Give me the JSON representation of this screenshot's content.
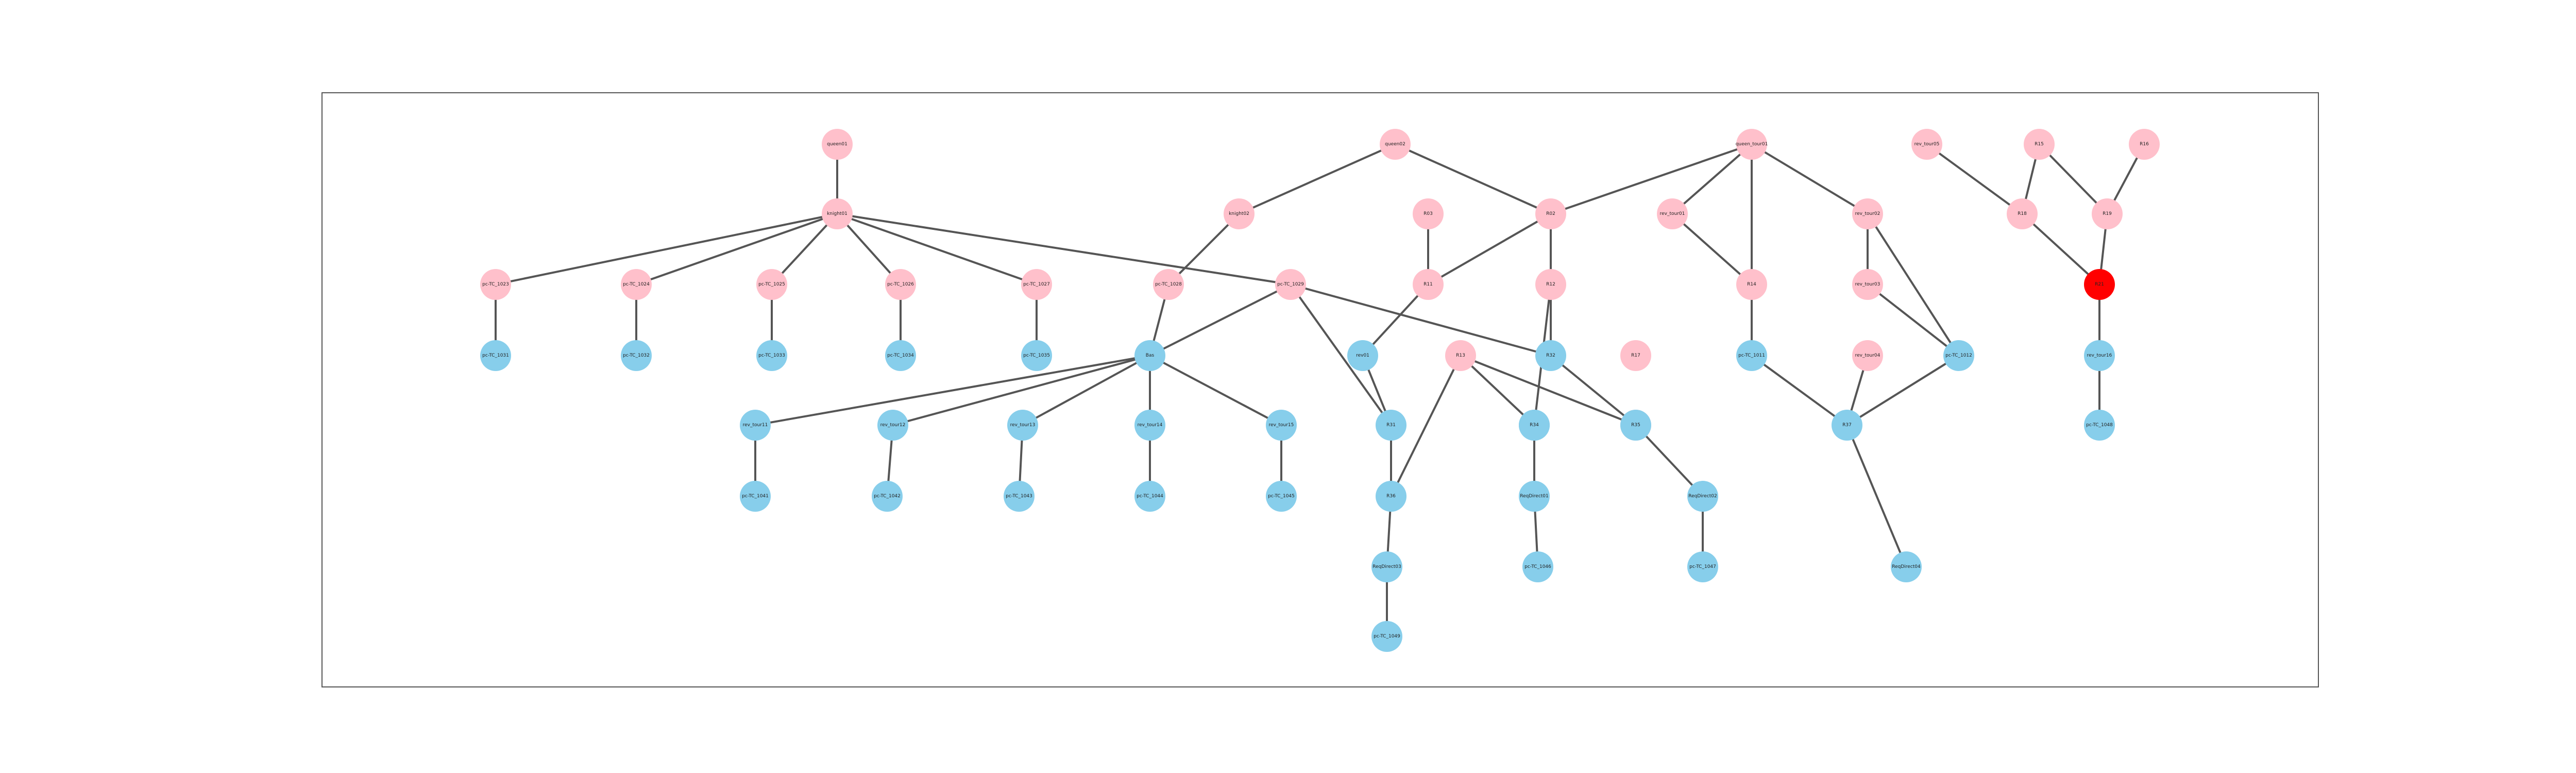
{
  "colors": {
    "pink_node": "#ffc0cb",
    "blue_node": "#87ceeb",
    "highlight_node": "#ff0000",
    "edge": "#555555"
  },
  "nodes": [
    {
      "id": "n1",
      "label": "queen01",
      "color": "pink"
    },
    {
      "id": "n2",
      "label": "knight01",
      "color": "pink"
    },
    {
      "id": "n3",
      "label": "queen02",
      "color": "pink"
    },
    {
      "id": "n4",
      "label": "knight02",
      "color": "pink"
    },
    {
      "id": "n5",
      "label": "R02",
      "color": "pink"
    },
    {
      "id": "n6",
      "label": "R03",
      "color": "pink"
    },
    {
      "id": "n7",
      "label": "queen_tour01",
      "color": "pink"
    },
    {
      "id": "n8",
      "label": "rev_tour01",
      "color": "pink"
    },
    {
      "id": "n9",
      "label": "rev_tour02",
      "color": "pink"
    },
    {
      "id": "n10",
      "label": "pc-TC_1023",
      "color": "pink"
    },
    {
      "id": "n11",
      "label": "pc-TC_1024",
      "color": "pink"
    },
    {
      "id": "n12",
      "label": "pc-TC_1025",
      "color": "pink"
    },
    {
      "id": "n13",
      "label": "pc-TC_1026",
      "color": "pink"
    },
    {
      "id": "n14",
      "label": "pc-TC_1027",
      "color": "pink"
    },
    {
      "id": "n15",
      "label": "pc-TC_1028",
      "color": "pink"
    },
    {
      "id": "n16",
      "label": "pc-TC_1029",
      "color": "pink"
    },
    {
      "id": "n17",
      "label": "R11",
      "color": "pink"
    },
    {
      "id": "n18",
      "label": "R12",
      "color": "pink"
    },
    {
      "id": "n19",
      "label": "R13",
      "color": "pink"
    },
    {
      "id": "n20",
      "label": "rev_tour03",
      "color": "pink"
    },
    {
      "id": "n21",
      "label": "R14",
      "color": "pink"
    },
    {
      "id": "n22",
      "label": "rev_tour04",
      "color": "pink"
    },
    {
      "id": "n23",
      "label": "rev_tour05",
      "color": "pink"
    },
    {
      "id": "n24",
      "label": "R15",
      "color": "pink"
    },
    {
      "id": "n25",
      "label": "R16",
      "color": "pink"
    },
    {
      "id": "n26",
      "label": "R17",
      "color": "pink"
    },
    {
      "id": "n27",
      "label": "R18",
      "color": "pink"
    },
    {
      "id": "n28",
      "label": "R19",
      "color": "pink"
    },
    {
      "id": "n29",
      "label": "R20",
      "color": "pink"
    },
    {
      "id": "n30",
      "label": "R21",
      "color": "highlight"
    },
    {
      "id": "n31",
      "label": "pc-TC_1031",
      "color": "blue"
    },
    {
      "id": "n32",
      "label": "pc-TC_1032",
      "color": "blue"
    },
    {
      "id": "n33",
      "label": "pc-TC_1033",
      "color": "blue"
    },
    {
      "id": "n34",
      "label": "pc-TC_1034",
      "color": "blue"
    },
    {
      "id": "n35",
      "label": "pc-TC_1035",
      "color": "blue"
    },
    {
      "id": "n36",
      "label": "Bas",
      "color": "blue"
    },
    {
      "id": "n37",
      "label": "rev01",
      "color": "blue"
    },
    {
      "id": "n38",
      "label": "R31",
      "color": "blue"
    },
    {
      "id": "n39",
      "label": "pc-TC_1011",
      "color": "blue"
    },
    {
      "id": "n40",
      "label": "R32",
      "color": "blue"
    },
    {
      "id": "n41",
      "label": "rev_tour11",
      "color": "blue"
    },
    {
      "id": "n42",
      "label": "rev_tour12",
      "color": "blue"
    },
    {
      "id": "n43",
      "label": "rev_tour13",
      "color": "blue"
    },
    {
      "id": "n44",
      "label": "rev_tour14",
      "color": "blue"
    },
    {
      "id": "n45",
      "label": "rev_tour15",
      "color": "blue"
    },
    {
      "id": "n46",
      "label": "R33",
      "color": "blue"
    },
    {
      "id": "n47",
      "label": "R34",
      "color": "blue"
    },
    {
      "id": "n48",
      "label": "R35",
      "color": "blue"
    },
    {
      "id": "n49",
      "label": "pc-TC_1012",
      "color": "blue"
    },
    {
      "id": "n50",
      "label": "pc-TC_1041",
      "color": "blue"
    },
    {
      "id": "n51",
      "label": "pc-TC_1042",
      "color": "blue"
    },
    {
      "id": "n52",
      "label": "pc-TC_1043",
      "color": "blue"
    },
    {
      "id": "n53",
      "label": "pc-TC_1044",
      "color": "blue"
    },
    {
      "id": "n54",
      "label": "pc-TC_1045",
      "color": "blue"
    },
    {
      "id": "n55",
      "label": "R36",
      "color": "blue"
    },
    {
      "id": "n56",
      "label": "ReqDirect01",
      "color": "blue"
    },
    {
      "id": "n57",
      "label": "ReqDirect02",
      "color": "blue"
    },
    {
      "id": "n58",
      "label": "R37",
      "color": "blue"
    },
    {
      "id": "n59",
      "label": "ReqDirect03",
      "color": "blue"
    },
    {
      "id": "n60",
      "label": "pc-TC_1046",
      "color": "blue"
    },
    {
      "id": "n61",
      "label": "pc-TC_1047",
      "color": "blue"
    },
    {
      "id": "n62",
      "label": "ReqDirect04",
      "color": "blue"
    },
    {
      "id": "n63",
      "label": "pc-TC_1048",
      "color": "blue"
    },
    {
      "id": "n64",
      "label": "rev_tour16",
      "color": "blue"
    },
    {
      "id": "n65",
      "label": "pc-TC_1049",
      "color": "blue"
    }
  ],
  "edges": [
    [
      "n1",
      "n2"
    ],
    [
      "n2",
      "n10"
    ],
    [
      "n2",
      "n11"
    ],
    [
      "n2",
      "n12"
    ],
    [
      "n2",
      "n13"
    ],
    [
      "n2",
      "n14"
    ],
    [
      "n2",
      "n16"
    ],
    [
      "n10",
      "n31"
    ],
    [
      "n11",
      "n32"
    ],
    [
      "n12",
      "n33"
    ],
    [
      "n13",
      "n34"
    ],
    [
      "n14",
      "n35"
    ],
    [
      "n3",
      "n4"
    ],
    [
      "n3",
      "n5"
    ],
    [
      "n4",
      "n15"
    ],
    [
      "n15",
      "n36"
    ],
    [
      "n16",
      "n36"
    ],
    [
      "n16",
      "n38"
    ],
    [
      "n16",
      "n40"
    ],
    [
      "n36",
      "n41"
    ],
    [
      "n36",
      "n42"
    ],
    [
      "n36",
      "n43"
    ],
    [
      "n36",
      "n44"
    ],
    [
      "n36",
      "n45"
    ],
    [
      "n41",
      "n50"
    ],
    [
      "n42",
      "n51"
    ],
    [
      "n43",
      "n52"
    ],
    [
      "n44",
      "n53"
    ],
    [
      "n45",
      "n54"
    ],
    [
      "n6",
      "n17"
    ],
    [
      "n5",
      "n17"
    ],
    [
      "n5",
      "n18"
    ],
    [
      "n5",
      "n40"
    ],
    [
      "n17",
      "n37"
    ],
    [
      "n37",
      "n38"
    ],
    [
      "n38",
      "n55"
    ],
    [
      "n18",
      "n46"
    ],
    [
      "n19",
      "n55"
    ],
    [
      "n19",
      "n47"
    ],
    [
      "n19",
      "n48"
    ],
    [
      "n46",
      "n47"
    ],
    [
      "n47",
      "n56"
    ],
    [
      "n56",
      "n60"
    ],
    [
      "n40",
      "n48"
    ],
    [
      "n48",
      "n57"
    ],
    [
      "n57",
      "n61"
    ],
    [
      "n55",
      "n59"
    ],
    [
      "n59",
      "n65"
    ],
    [
      "n7",
      "n5"
    ],
    [
      "n7",
      "n8"
    ],
    [
      "n7",
      "n21"
    ],
    [
      "n7",
      "n9"
    ],
    [
      "n8",
      "n21"
    ],
    [
      "n21",
      "n39"
    ],
    [
      "n39",
      "n58"
    ],
    [
      "n9",
      "n20"
    ],
    [
      "n9",
      "n49"
    ],
    [
      "n20",
      "n49"
    ],
    [
      "n49",
      "n58"
    ],
    [
      "n22",
      "n58"
    ],
    [
      "n58",
      "n62"
    ],
    [
      "n23",
      "n27"
    ],
    [
      "n24",
      "n27"
    ],
    [
      "n24",
      "n28"
    ],
    [
      "n25",
      "n28"
    ],
    [
      "n27",
      "n30"
    ],
    [
      "n28",
      "n30"
    ],
    [
      "n30",
      "n64"
    ],
    [
      "n64",
      "n63"
    ]
  ]
}
